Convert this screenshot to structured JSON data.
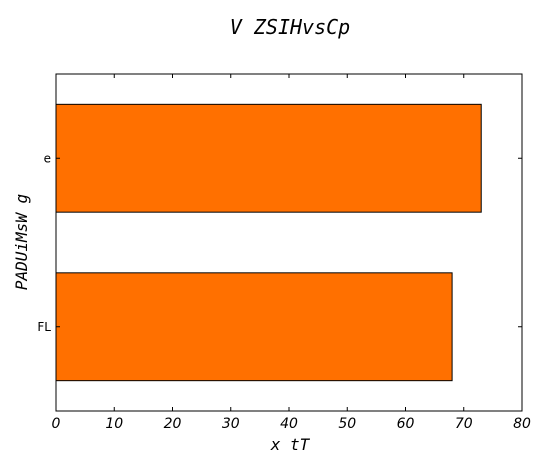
{
  "chart_data": {
    "type": "bar",
    "orientation": "horizontal",
    "title": "V  ZSIHvsCp",
    "xlabel": "x  tT",
    "ylabel": "PADUiMsW g",
    "categories": [
      "FL",
      "e"
    ],
    "values": [
      68,
      73
    ],
    "xlim": [
      0,
      80
    ],
    "xticks": [
      "0",
      "10",
      "20",
      "30",
      "40",
      "50",
      "60",
      "70",
      "80"
    ],
    "bar_color": "#ff7000",
    "grid": false
  }
}
